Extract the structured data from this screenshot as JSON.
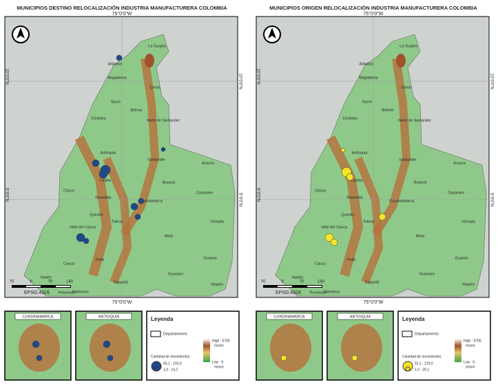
{
  "panels": [
    {
      "title": "MUNICIPIOS DESTINO RELOCALIZACIÓN INDUSTRIA MANUFACTURERA COLOMBIA",
      "coords": {
        "top": "75°0'0\"W",
        "bottom": "75°0'0\"W",
        "lat_10": "10°0'0\"N",
        "lat_5": "5°0'0\"N"
      },
      "departments": [
        "La Guajira",
        "Atlántico",
        "Magdalena",
        "Cesar",
        "Sucre",
        "Bolívar",
        "Córdoba",
        "Norte de Santander",
        "Antioquia",
        "Santander",
        "Arauca",
        "Chocó",
        "Caldas",
        "Risaralda",
        "Boyacá",
        "Cundinamarca",
        "Casanare",
        "Quindío",
        "Tolima",
        "Valle del Cauca",
        "Vichada",
        "Meta",
        "Cauca",
        "Huila",
        "Guainía",
        "Guaviare",
        "Nariño",
        "Caquetá",
        "Putumayo",
        "Vaupés"
      ],
      "scale": [
        "70",
        "0",
        "70",
        "140"
      ],
      "scale_unit": "Kilómetros",
      "epsg": "EPSG:4326",
      "insets": [
        "CUNDINAMARCA",
        "ANTIOQUIA"
      ],
      "legend": {
        "title": "Leyenda",
        "department": "Departamento",
        "high": "High : 5700",
        "high_unit": "msnm",
        "low": "Low : 0",
        "low_unit": "msnm",
        "count_title": "Cantidad de movimientos",
        "count_high": "55,1 - 102,0",
        "count_low": "1,0 - 14,2"
      }
    },
    {
      "title": "MUNICIPIOS ORIGEN RELOCALIZACIÓN INDUSTRIA MANUFACTURERA COLOMBIA",
      "coords": {
        "top": "75°0'0\"W",
        "bottom": "75°0'0\"W",
        "lat_10": "10°0'0\"N",
        "lat_5": "5°0'0\"N"
      },
      "departments": [
        "La Guajira",
        "Atlántico",
        "Magdalena",
        "Cesar",
        "Sucre",
        "Bolívar",
        "Córdoba",
        "Norte de Santander",
        "Antioquia",
        "Santander",
        "Arauca",
        "Chocó",
        "Caldas",
        "Risaralda",
        "Boyacá",
        "Cundinamarca",
        "Casanare",
        "Quindío",
        "Tolima",
        "Valle del Cauca",
        "Vichada",
        "Meta",
        "Cauca",
        "Huila",
        "Guainía",
        "Guaviare",
        "Nariño",
        "Caquetá",
        "Putumayo",
        "Vaupés"
      ],
      "scale": [
        "70",
        "0",
        "70",
        "140"
      ],
      "scale_unit": "Kilómetros",
      "epsg": "EPSG:4326",
      "insets": [
        "CUNDINAMARCA",
        "ANTIOQUIA"
      ],
      "legend": {
        "title": "Leyenda",
        "department": "Departamento",
        "high": "High : 5700",
        "high_unit": "msnm",
        "low": "Low : 0",
        "low_unit": "msnm",
        "count_title": "Cantidad de movimientos",
        "count_high": "52,1 - 219,0",
        "count_low": "1,0 - 29,1"
      }
    }
  ]
}
